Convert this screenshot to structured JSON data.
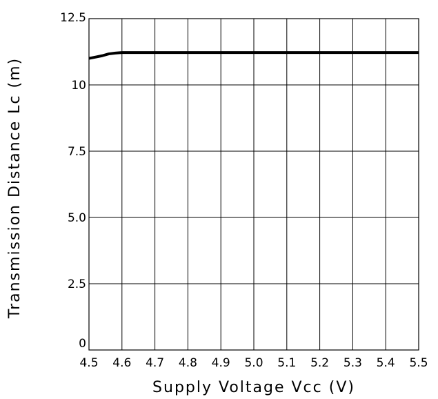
{
  "chart_data": {
    "type": "line",
    "xlabel": "Supply Voltage Vcc (V)",
    "ylabel": "Transmission Distance Lc (m)",
    "xlim": [
      4.5,
      5.5
    ],
    "ylim": [
      0,
      12.5
    ],
    "x_ticks": [
      4.5,
      4.6,
      4.7,
      4.8,
      4.9,
      5.0,
      5.1,
      5.2,
      5.3,
      5.4,
      5.5
    ],
    "x_tick_labels": [
      "4.5",
      "4.6",
      "4.7",
      "4.8",
      "4.9",
      "5.0",
      "5.1",
      "5.2",
      "5.3",
      "5.4",
      "5.5"
    ],
    "y_ticks": [
      0,
      2.5,
      5.0,
      7.5,
      10,
      12.5
    ],
    "y_tick_labels": [
      "0",
      "2.5",
      "5.0",
      "7.5",
      "10",
      "12.5"
    ],
    "x_grid": [
      4.6,
      4.7,
      4.8,
      4.9,
      5.0,
      5.1,
      5.2,
      5.3,
      5.4
    ],
    "y_grid": [
      2.5,
      5.0,
      7.5,
      10
    ],
    "grid": true,
    "series": [
      {
        "x": [
          4.5,
          4.52,
          4.54,
          4.56,
          4.58,
          4.6,
          4.65,
          4.7,
          5.0,
          5.5
        ],
        "y": [
          11.0,
          11.05,
          11.1,
          11.17,
          11.2,
          11.22,
          11.22,
          11.22,
          11.22,
          11.22
        ]
      }
    ]
  }
}
